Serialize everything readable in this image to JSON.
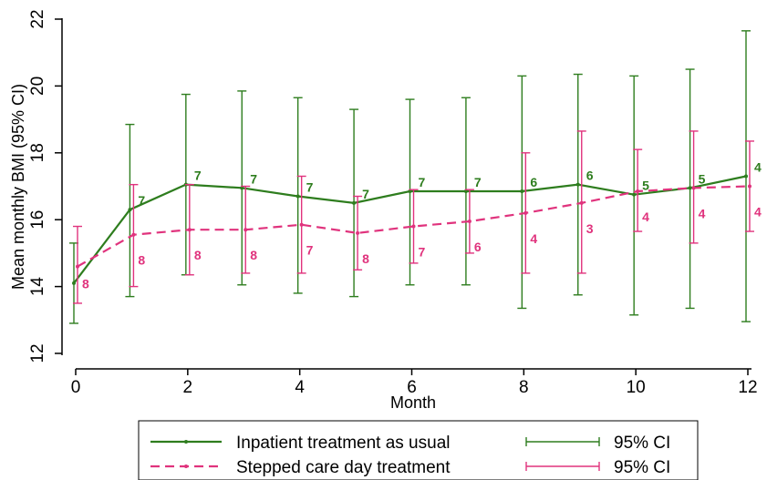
{
  "chart_data": {
    "type": "line",
    "title": "",
    "xlabel": "Month",
    "ylabel": "Mean monthly BMI (95% CI)",
    "xlim": [
      0,
      12
    ],
    "ylim": [
      12,
      22
    ],
    "xticks": [
      0,
      2,
      4,
      6,
      8,
      10,
      12
    ],
    "yticks": [
      12,
      14,
      16,
      18,
      20,
      22
    ],
    "grid": false,
    "legend_position": "bottom",
    "x": [
      0,
      1,
      2,
      3,
      4,
      5,
      6,
      7,
      8,
      9,
      10,
      11,
      12
    ],
    "series": [
      {
        "name": "Inpatient treatment as usual",
        "color": "#2e7d1e",
        "line_style": "solid",
        "mean": [
          14.1,
          16.3,
          17.05,
          16.95,
          16.7,
          16.5,
          16.85,
          16.85,
          16.85,
          17.05,
          16.75,
          16.95,
          17.3
        ],
        "ci_low": [
          12.9,
          13.7,
          14.35,
          14.05,
          13.8,
          13.7,
          14.05,
          14.05,
          13.35,
          13.75,
          13.15,
          13.35,
          12.95
        ],
        "ci_high": [
          15.3,
          18.85,
          19.75,
          19.85,
          19.65,
          19.3,
          19.6,
          19.65,
          20.3,
          20.35,
          20.3,
          20.5,
          21.65
        ],
        "n": [
          "",
          "7",
          "7",
          "7",
          "7",
          "7",
          "7",
          "7",
          "6",
          "6",
          "5",
          "5",
          "4"
        ],
        "ci_legend": "95% CI"
      },
      {
        "name": "Stepped care day treatment",
        "color": "#e0337d",
        "line_style": "dashed",
        "mean": [
          14.6,
          15.55,
          15.7,
          15.7,
          15.85,
          15.6,
          15.8,
          15.95,
          16.2,
          16.5,
          16.85,
          16.95,
          17.0
        ],
        "ci_low": [
          13.5,
          14.0,
          14.35,
          14.4,
          14.4,
          14.5,
          14.7,
          15.0,
          14.4,
          14.4,
          15.65,
          15.3,
          15.65
        ],
        "ci_high": [
          15.8,
          17.05,
          17.05,
          17.0,
          17.3,
          16.7,
          16.9,
          16.9,
          18.0,
          18.65,
          18.1,
          18.65,
          18.35
        ],
        "n": [
          "8",
          "8",
          "8",
          "8",
          "7",
          "8",
          "7",
          "6",
          "4",
          "3",
          "4",
          "4",
          "4"
        ],
        "ci_legend": "95% CI"
      }
    ]
  }
}
